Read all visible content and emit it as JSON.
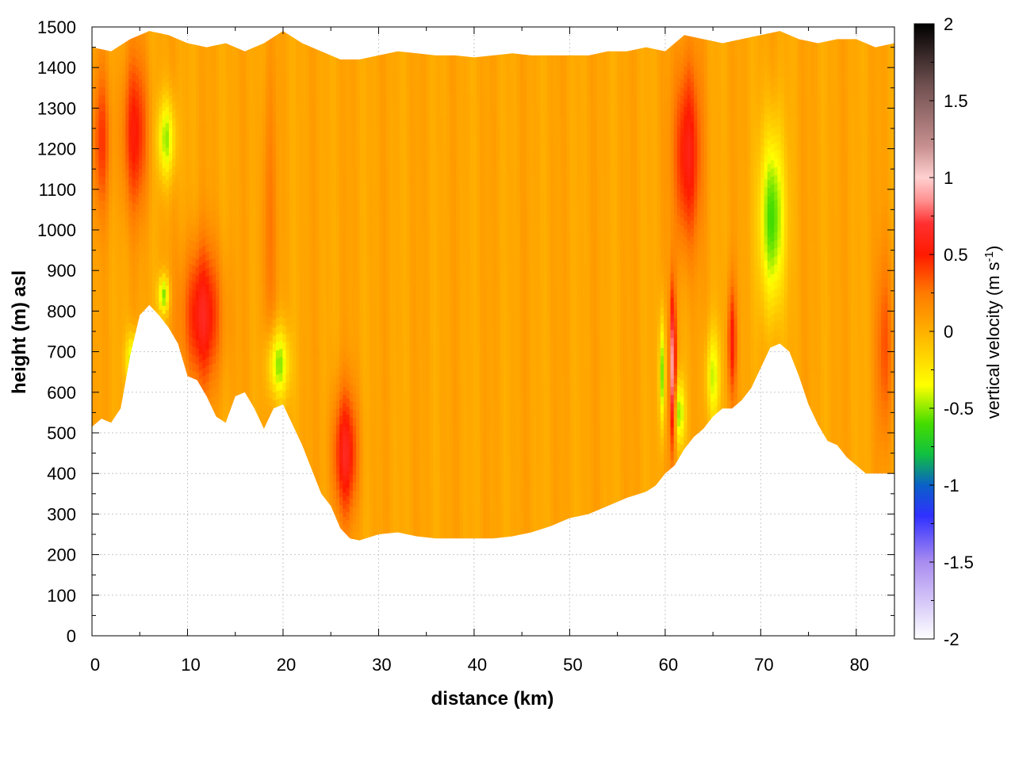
{
  "chart_data": {
    "type": "heatmap",
    "title": "",
    "xlabel": "distance (km)",
    "ylabel": "height (m) asl",
    "xlim": [
      0,
      84
    ],
    "ylim": [
      0,
      1500
    ],
    "grid": true,
    "x_ticks": [
      "0",
      "10",
      "20",
      "30",
      "40",
      "50",
      "60",
      "70",
      "80"
    ],
    "y_ticks": [
      "0",
      "100",
      "200",
      "300",
      "400",
      "500",
      "600",
      "700",
      "800",
      "900",
      "1000",
      "1100",
      "1200",
      "1300",
      "1400",
      "1500"
    ],
    "colorbar": {
      "label": "vertical velocity (m s",
      "label_sup": "-1",
      "label_end": ")",
      "range": [
        -2,
        2
      ],
      "ticks": [
        "2",
        "1.5",
        "1",
        "0.5",
        "0",
        "-0.5",
        "-1",
        "-1.5",
        "-2"
      ],
      "stops": [
        {
          "v": -2.0,
          "color": "#ffffff"
        },
        {
          "v": -1.5,
          "color": "#a98cf0"
        },
        {
          "v": -1.2,
          "color": "#3030ff"
        },
        {
          "v": -1.0,
          "color": "#0a60c8"
        },
        {
          "v": -0.8,
          "color": "#10c040"
        },
        {
          "v": -0.6,
          "color": "#44dd00"
        },
        {
          "v": -0.35,
          "color": "#ffff00"
        },
        {
          "v": 0.0,
          "color": "#ffb000"
        },
        {
          "v": 0.25,
          "color": "#ff7a00"
        },
        {
          "v": 0.5,
          "color": "#ff1a00"
        },
        {
          "v": 0.7,
          "color": "#ff3030"
        },
        {
          "v": 0.85,
          "color": "#ff9090"
        },
        {
          "v": 1.0,
          "color": "#ffd0d0"
        },
        {
          "v": 1.2,
          "color": "#c89090"
        },
        {
          "v": 1.6,
          "color": "#705050"
        },
        {
          "v": 2.0,
          "color": "#000000"
        }
      ]
    },
    "terrain_profile": {
      "x": [
        0,
        1,
        2,
        3,
        4,
        5,
        6,
        7,
        8,
        9,
        10,
        11,
        12,
        13,
        14,
        15,
        16,
        17,
        18,
        19,
        20,
        21,
        22,
        23,
        24,
        25,
        26,
        27,
        28,
        30,
        32,
        34,
        36,
        38,
        40,
        42,
        44,
        46,
        48,
        50,
        52,
        54,
        56,
        58,
        59,
        60,
        61,
        62,
        63,
        64,
        65,
        66,
        67,
        68,
        69,
        70,
        71,
        72,
        73,
        74,
        75,
        76,
        77,
        78,
        79,
        80,
        81,
        82,
        83,
        84
      ],
      "height": [
        515,
        535,
        525,
        560,
        690,
        790,
        815,
        790,
        760,
        720,
        640,
        630,
        590,
        540,
        525,
        590,
        600,
        560,
        510,
        560,
        570,
        520,
        470,
        410,
        350,
        320,
        265,
        240,
        235,
        250,
        255,
        245,
        240,
        240,
        240,
        240,
        245,
        255,
        270,
        290,
        300,
        320,
        340,
        355,
        370,
        400,
        420,
        460,
        490,
        510,
        540,
        560,
        560,
        580,
        610,
        660,
        710,
        720,
        700,
        640,
        570,
        520,
        480,
        470,
        440,
        420,
        400,
        400,
        400,
        400
      ]
    },
    "top_profile": {
      "x": [
        0,
        2,
        4,
        6,
        8,
        10,
        12,
        14,
        16,
        18,
        20,
        22,
        24,
        26,
        28,
        30,
        32,
        34,
        36,
        38,
        40,
        42,
        44,
        46,
        48,
        50,
        52,
        54,
        56,
        58,
        60,
        62,
        64,
        66,
        68,
        70,
        72,
        74,
        76,
        78,
        80,
        82,
        84
      ],
      "height": [
        1450,
        1440,
        1470,
        1490,
        1480,
        1460,
        1450,
        1460,
        1440,
        1460,
        1490,
        1460,
        1440,
        1420,
        1420,
        1430,
        1440,
        1435,
        1430,
        1430,
        1425,
        1430,
        1435,
        1430,
        1430,
        1430,
        1430,
        1440,
        1440,
        1450,
        1440,
        1480,
        1470,
        1460,
        1470,
        1480,
        1490,
        1470,
        1460,
        1470,
        1470,
        1450,
        1460
      ]
    },
    "features": [
      {
        "x_center": 1,
        "x_halfwidth": 1.0,
        "z_low": 1000,
        "z_high": 1440,
        "w": 0.35
      },
      {
        "x_center": 4.5,
        "x_halfwidth": 1.5,
        "z_low": 1000,
        "z_high": 1480,
        "w": 0.45
      },
      {
        "x_center": 4.3,
        "x_halfwidth": 0.8,
        "z_low": 600,
        "z_high": 760,
        "w": -0.55
      },
      {
        "x_center": 7.8,
        "x_halfwidth": 1.0,
        "z_low": 1100,
        "z_high": 1350,
        "w": -0.55
      },
      {
        "x_center": 7.5,
        "x_halfwidth": 0.6,
        "z_low": 780,
        "z_high": 900,
        "w": -0.6
      },
      {
        "x_center": 11.5,
        "x_halfwidth": 2.2,
        "z_low": 580,
        "z_high": 1000,
        "w": 0.55
      },
      {
        "x_center": 19.5,
        "x_halfwidth": 1.2,
        "z_low": 560,
        "z_high": 780,
        "w": -0.6
      },
      {
        "x_center": 18.5,
        "x_halfwidth": 0.8,
        "z_low": 500,
        "z_high": 1480,
        "w": 0.2
      },
      {
        "x_center": 26.5,
        "x_halfwidth": 1.4,
        "z_low": 260,
        "z_high": 640,
        "w": 0.55
      },
      {
        "x_center": 59.7,
        "x_halfwidth": 0.35,
        "z_low": 480,
        "z_high": 820,
        "w": -0.6
      },
      {
        "x_center": 60.8,
        "x_halfwidth": 0.35,
        "z_low": 420,
        "z_high": 900,
        "w": 0.9
      },
      {
        "x_center": 62.3,
        "x_halfwidth": 1.5,
        "z_low": 900,
        "z_high": 1480,
        "w": 0.55
      },
      {
        "x_center": 61.5,
        "x_halfwidth": 0.6,
        "z_low": 450,
        "z_high": 650,
        "w": -0.55
      },
      {
        "x_center": 65.0,
        "x_halfwidth": 0.8,
        "z_low": 500,
        "z_high": 780,
        "w": -0.45
      },
      {
        "x_center": 67.0,
        "x_halfwidth": 0.5,
        "z_low": 550,
        "z_high": 900,
        "w": 0.45
      },
      {
        "x_center": 71.2,
        "x_halfwidth": 1.4,
        "z_low": 760,
        "z_high": 1300,
        "w": -0.7
      },
      {
        "x_center": 83.0,
        "x_halfwidth": 1.0,
        "z_low": 420,
        "z_high": 1000,
        "w": 0.3
      }
    ]
  }
}
